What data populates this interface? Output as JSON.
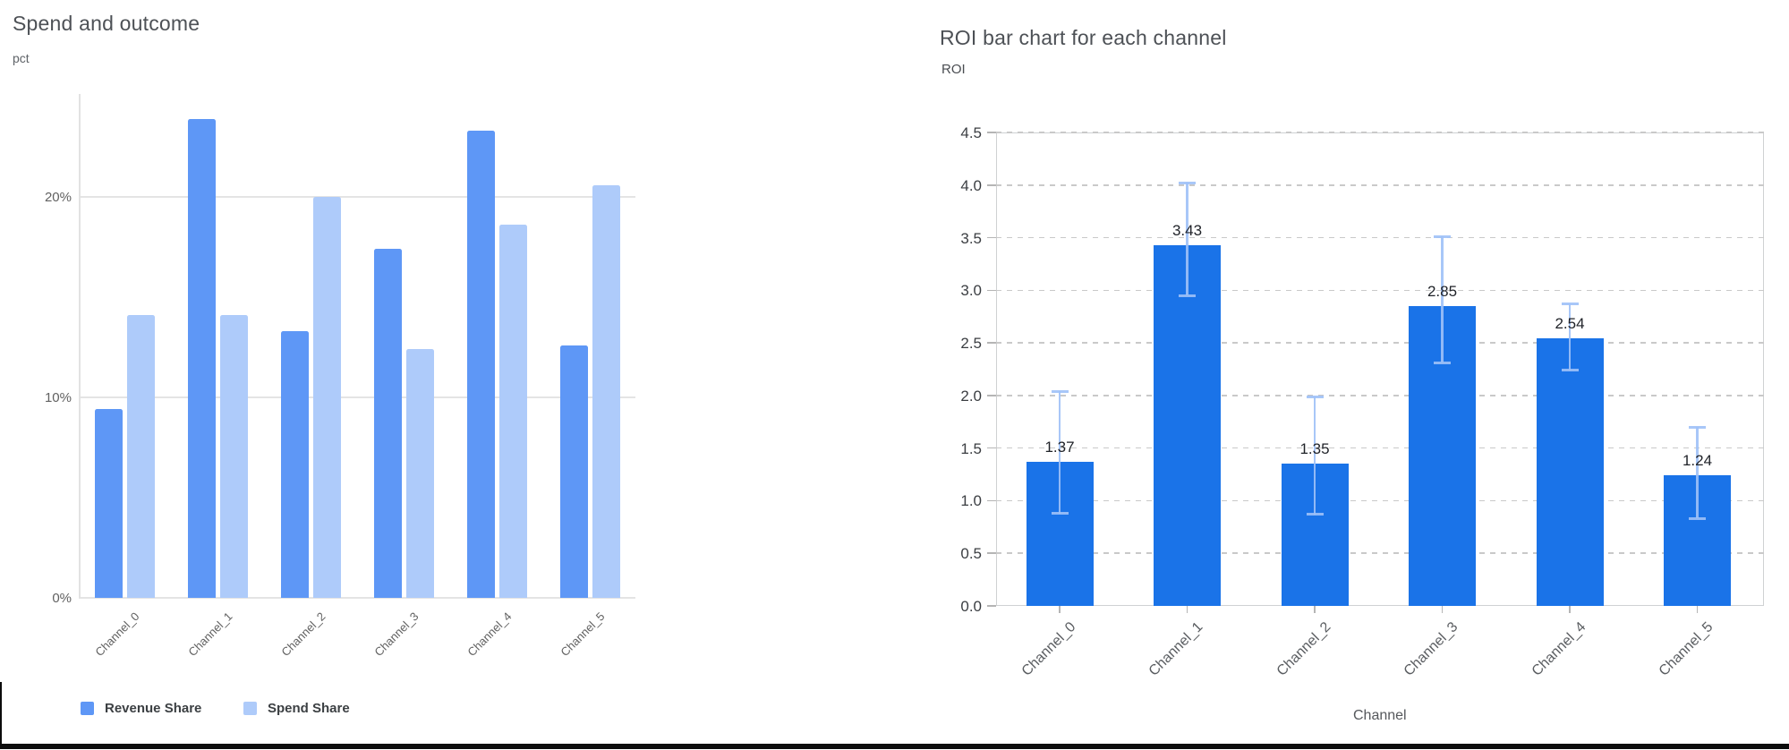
{
  "left_chart": {
    "title": "Spend and outcome",
    "y_unit_label": "pct",
    "legend": {
      "revenue_label": "Revenue Share",
      "spend_label": "Spend Share"
    }
  },
  "right_chart": {
    "title": "ROI bar chart for each channel",
    "y_unit_label": "ROI",
    "x_axis_title": "Channel"
  },
  "colors": {
    "revenue_bar": "#5e97f6",
    "spend_bar": "#aecbfa",
    "roi_bar": "#1a73e8",
    "error_bar": "#9ec1f7"
  },
  "chart_data": [
    {
      "type": "bar",
      "title": "Spend and outcome",
      "ylabel": "pct",
      "xlabel": "",
      "categories": [
        "Channel_0",
        "Channel_1",
        "Channel_2",
        "Channel_3",
        "Channel_4",
        "Channel_5"
      ],
      "series": [
        {
          "name": "Revenue Share",
          "color": "#5e97f6",
          "values": [
            9.4,
            23.9,
            13.3,
            17.4,
            23.3,
            12.6
          ]
        },
        {
          "name": "Spend Share",
          "color": "#aecbfa",
          "values": [
            14.1,
            14.1,
            20.0,
            12.4,
            18.6,
            20.6
          ]
        }
      ],
      "y_ticks": [
        {
          "value": 0,
          "label": "0%"
        },
        {
          "value": 10,
          "label": "10%"
        },
        {
          "value": 20,
          "label": "20%"
        }
      ],
      "ylim": [
        0,
        25.1
      ],
      "grid": true,
      "legend_position": "bottom"
    },
    {
      "type": "bar",
      "title": "ROI bar chart for each channel",
      "ylabel": "ROI",
      "xlabel": "Channel",
      "categories": [
        "Channel_0",
        "Channel_1",
        "Channel_2",
        "Channel_3",
        "Channel_4",
        "Channel_5"
      ],
      "values": [
        1.37,
        3.43,
        1.35,
        2.85,
        2.54,
        1.24
      ],
      "value_labels": [
        "1.37",
        "3.43",
        "1.35",
        "2.85",
        "2.54",
        "1.24"
      ],
      "error_low": [
        0.88,
        2.95,
        0.87,
        2.31,
        2.24,
        0.83
      ],
      "error_high": [
        2.04,
        4.02,
        1.99,
        3.51,
        2.87,
        1.7
      ],
      "y_ticks": [
        {
          "value": 0.0,
          "label": "0.0"
        },
        {
          "value": 0.5,
          "label": "0.5"
        },
        {
          "value": 1.0,
          "label": "1.0"
        },
        {
          "value": 1.5,
          "label": "1.5"
        },
        {
          "value": 2.0,
          "label": "2.0"
        },
        {
          "value": 2.5,
          "label": "2.5"
        },
        {
          "value": 3.0,
          "label": "3.0"
        },
        {
          "value": 3.5,
          "label": "3.5"
        },
        {
          "value": 4.0,
          "label": "4.0"
        },
        {
          "value": 4.5,
          "label": "4.5"
        }
      ],
      "ylim": [
        0,
        4.5
      ],
      "grid": "dashed-horizontal",
      "bar_color": "#1a73e8",
      "error_color": "#9ec1f7"
    }
  ]
}
